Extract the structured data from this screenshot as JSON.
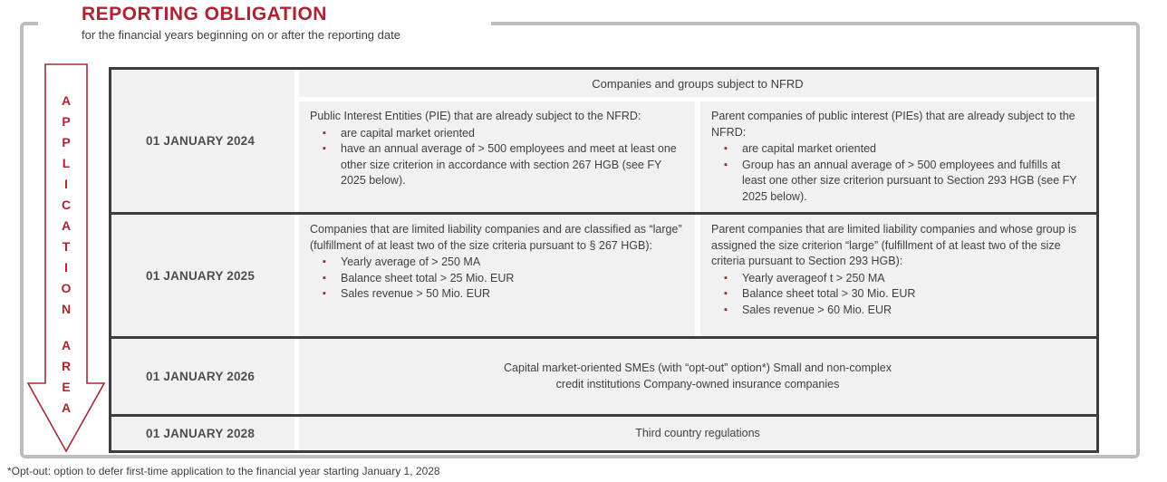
{
  "title": "REPORTING OBLIGATION",
  "subtitle": "for the financial years beginning on or after the reporting date",
  "arrow": {
    "label": "APPLICATION AREA"
  },
  "table": {
    "header": "Companies and groups subject to NFRD",
    "rows": [
      {
        "date": "01 JANUARY 2024",
        "col_a": {
          "intro": "Public Interest Entities (PIE) that are already subject to the NFRD:",
          "bullets": [
            "are capital market oriented",
            "have an annual average of > 500 employees and meet at least one other size criterion in accordance with section 267 HGB (see FY 2025 below)."
          ]
        },
        "col_b": {
          "intro": "Parent companies of public interest (PIEs) that are already subject to the NFRD:",
          "bullets": [
            "are capital market oriented",
            "Group has an annual average of > 500 employees and fulfills at least one other size criterion pursuant to Section 293 HGB (see FY 2025 below)."
          ]
        }
      },
      {
        "date": "01 JANUARY 2025",
        "col_a": {
          "intro": "Companies that are limited liability companies and are classified as “large” (fulfillment of at least two of the size criteria pursuant to § 267 HGB):",
          "bullets": [
            "Yearly average of > 250 MA",
            "Balance sheet total > 25 Mio. EUR",
            "Sales revenue > 50 Mio. EUR"
          ]
        },
        "col_b": {
          "intro": "Parent companies that are limited liability companies and whose group is assigned the size criterion “large” (fulfillment of at least two of the size criteria pursuant to Section 293 HGB):",
          "bullets": [
            "Yearly averageof t > 250 MA",
            "Balance sheet total > 30 Mio. EUR",
            "Sales revenue > 60 Mio. EUR"
          ]
        }
      },
      {
        "date": "01 JANUARY 2026",
        "merged_line1": "Capital market-oriented SMEs (with “opt-out” option*) Small and non-complex",
        "merged_line2": "credit institutions Company-owned insurance companies"
      },
      {
        "date": "01 JANUARY 2028",
        "merged": "Third country regulations"
      }
    ]
  },
  "footnote": "*Opt-out: option to defer first-time application to the financial year starting January 1, 2028",
  "colors": {
    "accent_red": "#ae2330",
    "bullet_red": "#8f2a26",
    "border_dark": "#3d3d3d",
    "cell_gray": "#f1f1f1",
    "frame_gray": "#bdbdbd",
    "text_dark": "#3f3f3f",
    "date_gray": "#4d4d4d"
  }
}
